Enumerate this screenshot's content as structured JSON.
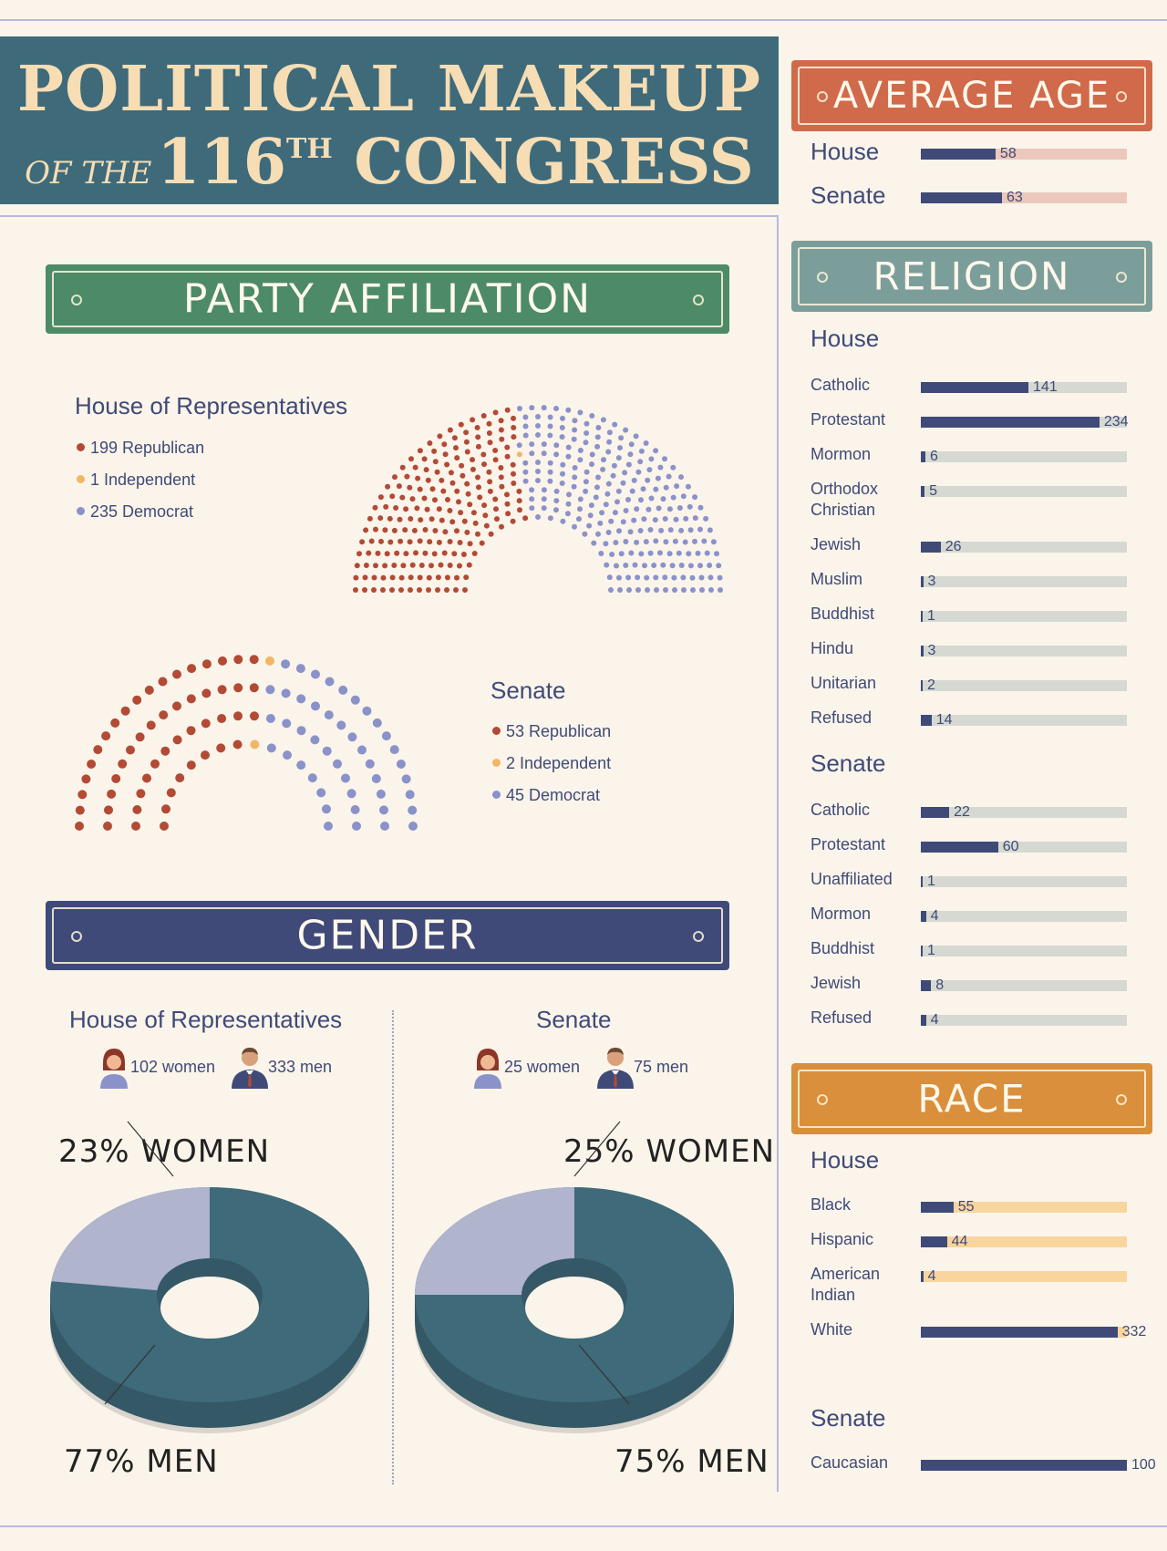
{
  "title": {
    "line1": "POLITICAL MAKEUP",
    "of_the": "OF THE",
    "number": "116",
    "suffix": "TH",
    "congress": "CONGRESS"
  },
  "colors": {
    "republican": "#b24a36",
    "independent": "#f2b665",
    "democrat": "#8a92c9",
    "navy": "#3f4a78",
    "teal": "#3e6a7a",
    "women": "#b0b4cc",
    "age_track": "#ecc7bb",
    "religion_track": "#d5d9d1",
    "race_track": "#f8d59d"
  },
  "banners": {
    "party": "PARTY AFFILIATION",
    "gender": "GENDER",
    "age": "AVERAGE AGE",
    "religion": "RELIGION",
    "race": "RACE"
  },
  "party": {
    "house": {
      "title": "House of Representatives",
      "legend": [
        "199 Republican",
        "1 Independent",
        "235 Democrat"
      ]
    },
    "senate": {
      "title": "Senate",
      "legend": [
        "53 Republican",
        "2 Independent",
        "45 Democrat"
      ]
    }
  },
  "gender": {
    "house": {
      "title": "House of Representatives",
      "women_label": "102 women",
      "men_label": "333 men",
      "women_pct": "23% WOMEN",
      "men_pct": "77% MEN"
    },
    "senate": {
      "title": "Senate",
      "women_label": "25 women",
      "men_label": "75 men",
      "women_pct": "25% WOMEN",
      "men_pct": "75% MEN"
    }
  },
  "age": {
    "rows": [
      {
        "label": "House",
        "value": "58"
      },
      {
        "label": "Senate",
        "value": "63"
      }
    ]
  },
  "religion": {
    "house_title": "House",
    "senate_title": "Senate",
    "house": [
      {
        "label": "Catholic",
        "value": "141"
      },
      {
        "label": "Protestant",
        "value": "234"
      },
      {
        "label": "Mormon",
        "value": "6"
      },
      {
        "label": "Orthodox Christian",
        "value": "5"
      },
      {
        "label": "Jewish",
        "value": "26"
      },
      {
        "label": "Muslim",
        "value": "3"
      },
      {
        "label": "Buddhist",
        "value": "1"
      },
      {
        "label": "Hindu",
        "value": "3"
      },
      {
        "label": "Unitarian",
        "value": "2"
      },
      {
        "label": "Refused",
        "value": "14"
      }
    ],
    "senate": [
      {
        "label": "Catholic",
        "value": "22"
      },
      {
        "label": "Protestant",
        "value": "60"
      },
      {
        "label": "Unaffiliated",
        "value": "1"
      },
      {
        "label": "Mormon",
        "value": "4"
      },
      {
        "label": "Buddhist",
        "value": "1"
      },
      {
        "label": "Jewish",
        "value": "8"
      },
      {
        "label": "Refused",
        "value": "4"
      }
    ]
  },
  "race": {
    "house_title": "House",
    "senate_title": "Senate",
    "house": [
      {
        "label": "Black",
        "value": "55"
      },
      {
        "label": "Hispanic",
        "value": "44"
      },
      {
        "label": "American Indian",
        "value": "4"
      },
      {
        "label": "White",
        "value": "332"
      }
    ],
    "senate": [
      {
        "label": "Caucasian",
        "value": "100"
      }
    ]
  },
  "chart_data": [
    {
      "type": "bar",
      "title": "AVERAGE AGE",
      "categories": [
        "House",
        "Senate"
      ],
      "values": [
        58,
        63
      ]
    },
    {
      "type": "bar",
      "title": "RELIGION",
      "subtitle": "House",
      "categories": [
        "Catholic",
        "Protestant",
        "Mormon",
        "Orthodox Christian",
        "Jewish",
        "Muslim",
        "Buddhist",
        "Hindu",
        "Unitarian",
        "Refused"
      ],
      "values": [
        141,
        234,
        6,
        5,
        26,
        3,
        1,
        3,
        2,
        14
      ]
    },
    {
      "type": "bar",
      "title": "RELIGION",
      "subtitle": "Senate",
      "categories": [
        "Catholic",
        "Protestant",
        "Unaffiliated",
        "Mormon",
        "Buddhist",
        "Jewish",
        "Refused"
      ],
      "values": [
        22,
        60,
        1,
        4,
        1,
        8,
        4
      ]
    },
    {
      "type": "bar",
      "title": "RACE",
      "subtitle": "House",
      "categories": [
        "Black",
        "Hispanic",
        "American Indian",
        "White"
      ],
      "values": [
        55,
        44,
        4,
        332
      ]
    },
    {
      "type": "bar",
      "title": "RACE",
      "subtitle": "Senate",
      "categories": [
        "Caucasian"
      ],
      "values": [
        100
      ]
    },
    {
      "type": "pie",
      "title": "House of Representatives",
      "categories": [
        "Women",
        "Men"
      ],
      "values": [
        23,
        77
      ]
    },
    {
      "type": "pie",
      "title": "Senate",
      "categories": [
        "Women",
        "Men"
      ],
      "values": [
        25,
        75
      ]
    },
    {
      "type": "scatter",
      "title": "House of Representatives",
      "series": [
        {
          "name": "Republican",
          "values": [
            199
          ]
        },
        {
          "name": "Independent",
          "values": [
            1
          ]
        },
        {
          "name": "Democrat",
          "values": [
            235
          ]
        }
      ]
    },
    {
      "type": "scatter",
      "title": "Senate",
      "series": [
        {
          "name": "Republican",
          "values": [
            53
          ]
        },
        {
          "name": "Independent",
          "values": [
            2
          ]
        },
        {
          "name": "Democrat",
          "values": [
            45
          ]
        }
      ]
    }
  ]
}
